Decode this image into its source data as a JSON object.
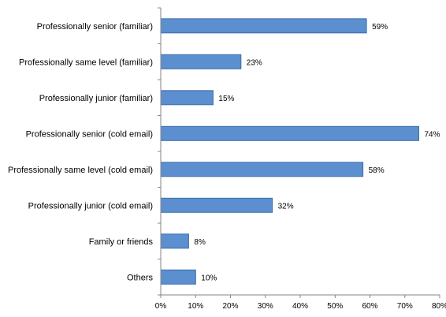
{
  "chart_data": {
    "type": "bar",
    "orientation": "horizontal",
    "categories": [
      "Professionally senior (familiar)",
      "Professionally same level (familiar)",
      "Professionally junior (familiar)",
      "Professionally senior (cold email)",
      "Professionally same level (cold email)",
      "Professionally junior (cold email)",
      "Family or friends",
      "Others"
    ],
    "values": [
      59,
      23,
      15,
      74,
      58,
      32,
      8,
      10
    ],
    "data_labels": [
      "59%",
      "23%",
      "15%",
      "74%",
      "58%",
      "32%",
      "8%",
      "10%"
    ],
    "xlim": [
      0,
      80
    ],
    "xticks": [
      0,
      10,
      20,
      30,
      40,
      50,
      60,
      70,
      80
    ],
    "xtick_labels": [
      "0%",
      "10%",
      "20%",
      "30%",
      "40%",
      "50%",
      "60%",
      "70%",
      "80%"
    ],
    "title": "",
    "xlabel": "",
    "ylabel": "",
    "grid": false,
    "legend": "none",
    "colors": {
      "bar_fill": "#5B8FCF",
      "bar_stroke": "#3E6FA8",
      "axis": "#868686"
    }
  }
}
